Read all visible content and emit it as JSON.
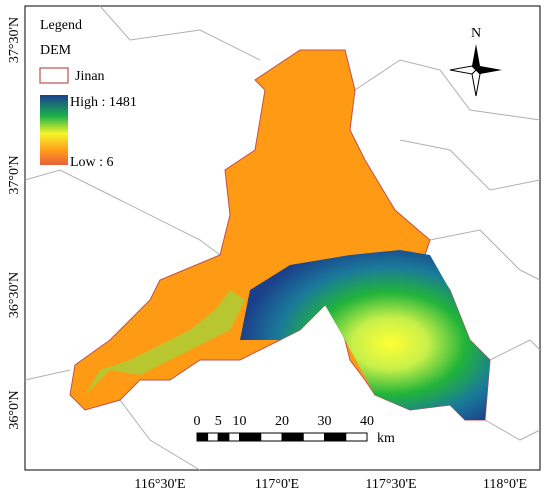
{
  "legend": {
    "title": "Legend",
    "layer": "DEM",
    "boundary": "Jinan",
    "high": "High : 1481",
    "low": "Low : 6"
  },
  "north": "N",
  "longitude_labels": [
    "116°30'E",
    "117°0'E",
    "117°30'E",
    "118°0'E"
  ],
  "latitude_labels": [
    "37°30'N",
    "37°0'N",
    "36°30'N",
    "36°0'N"
  ],
  "scale_bar": {
    "ticks": [
      0,
      5,
      10,
      20,
      30,
      40
    ],
    "unit": "km"
  }
}
